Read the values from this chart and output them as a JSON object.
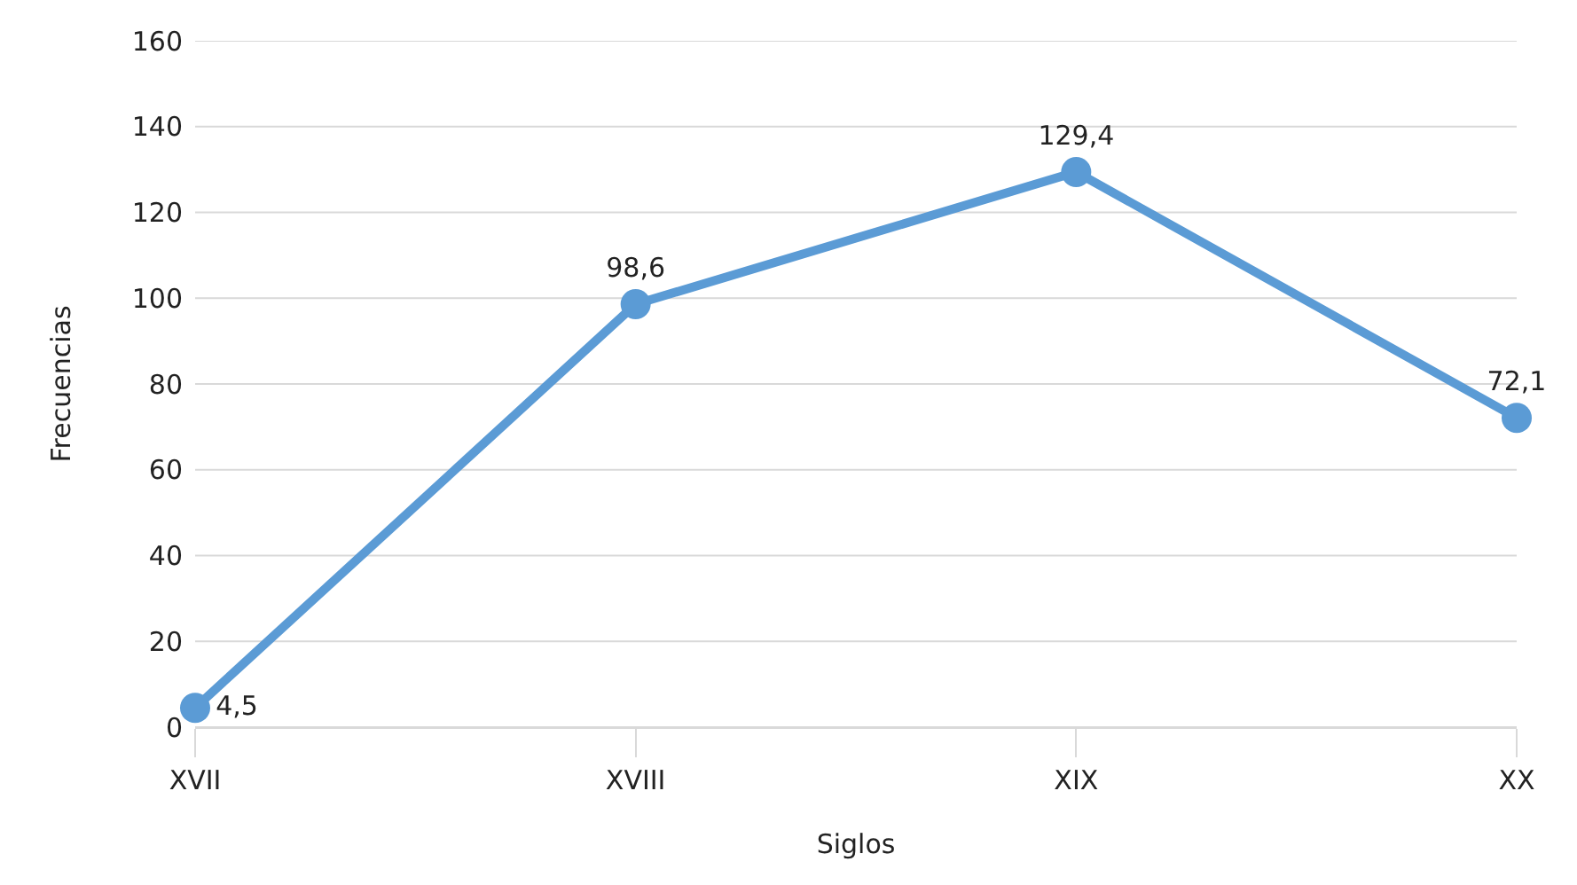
{
  "chart_data": {
    "type": "line",
    "xlabel": "Siglos",
    "ylabel": "Frecuencias",
    "categories": [
      "XVII",
      "XVIII",
      "XIX",
      "XX"
    ],
    "series": [
      {
        "color": "#5b9bd5",
        "values": [
          4.5,
          98.6,
          129.4,
          72.1
        ],
        "value_labels": [
          "4,5",
          "98,6",
          "129,4",
          "72,1"
        ]
      }
    ],
    "ylim": [
      0,
      160
    ],
    "yticks": [
      0,
      20,
      40,
      60,
      80,
      100,
      120,
      140,
      160
    ],
    "grid": "y",
    "marker": "circle",
    "line_style": "solid"
  }
}
